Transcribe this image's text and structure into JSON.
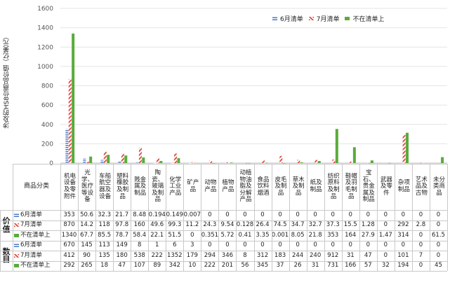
{
  "chart_data": {
    "type": "bar",
    "ylabel": "涉及的HS8位商品价值（亿美元）",
    "ylim": [
      0,
      1600
    ],
    "yticks": [
      0,
      200,
      400,
      600,
      800,
      1000,
      1200,
      1400,
      1600
    ],
    "legend_position": "top-right",
    "categories": [
      "机电设备及零附件",
      "光学、医疗等设备",
      "车船航空器及设备",
      "塑料橡胶及制品",
      "贱金属及制品",
      "陶瓷、玻璃及制品",
      "化学工业产品",
      "矿产品",
      "动物产品",
      "植物产品",
      "动植物油脂及分解产品",
      "食品饮料烟酒",
      "皮毛及制品",
      "草木及制品",
      "纸及制品",
      "纺织原料及制品",
      "鞋帽及羽毛制品",
      "宝石、贵金属及制品",
      "武器及零件",
      "杂项制品",
      "艺术品及古物",
      "未分类商品"
    ],
    "series": [
      {
        "name": "6月清单",
        "color": "#4a78c4",
        "values": [
          353,
          50.6,
          32.3,
          21.7,
          8.48,
          0.194,
          0.149,
          0.007,
          0,
          0,
          0,
          0,
          0,
          0,
          0,
          0,
          0,
          0,
          0,
          0,
          0,
          0
        ],
        "display": [
          "353",
          "50.6",
          "32.3",
          "21.7",
          "8.48",
          "0.194",
          "0.149",
          "0.007",
          "0",
          "0",
          "0",
          "0",
          "0",
          "0",
          "0",
          "0",
          "0",
          "0",
          "0",
          "0",
          "0",
          "0"
        ],
        "counts": [
          "670",
          "145",
          "113",
          "149",
          "8",
          "1",
          "6",
          "3",
          "0",
          "0",
          "0",
          "0",
          "0",
          "0",
          "0",
          "0",
          "0",
          "0",
          "0",
          "0",
          "0",
          "0"
        ]
      },
      {
        "name": "7月清单",
        "color": "#e0453a",
        "values": [
          870,
          14.2,
          118,
          97.8,
          160,
          49.6,
          99.3,
          11.2,
          24.3,
          9.54,
          0.128,
          26.4,
          74.5,
          34.7,
          32.7,
          37.3,
          15.5,
          1.28,
          0,
          292,
          2.8,
          0
        ],
        "display": [
          "870",
          "14.2",
          "118",
          "97.8",
          "160",
          "49.6",
          "99.3",
          "11.2",
          "24.3",
          "9.54",
          "0.128",
          "26.4",
          "74.5",
          "34.7",
          "32.7",
          "37.3",
          "15.5",
          "1.28",
          "0",
          "292",
          "2.8",
          "0"
        ],
        "counts": [
          "412",
          "90",
          "135",
          "180",
          "538",
          "222",
          "1352",
          "179",
          "294",
          "346",
          "8",
          "312",
          "183",
          "244",
          "240",
          "912",
          "31",
          "47",
          "0",
          "101",
          "7",
          "0"
        ]
      },
      {
        "name": "不在清单上",
        "color": "#5aab3c",
        "values": [
          1340,
          67.7,
          85.5,
          78.7,
          58.4,
          22.1,
          51.5,
          0,
          0.351,
          5.72,
          0.41,
          3.35,
          0.001,
          8.05,
          21.8,
          353,
          164,
          27.9,
          1.47,
          314,
          0,
          61.5
        ],
        "display": [
          "1340",
          "67.7",
          "85.5",
          "78.7",
          "58.4",
          "22.1",
          "51.5",
          "0",
          "0.351",
          "5.72",
          "0.41",
          "3.35",
          "0.001",
          "8.05",
          "21.8",
          "353",
          "164",
          "27.9",
          "1.47",
          "314",
          "0",
          "61.5"
        ],
        "counts": [
          "292",
          "265",
          "18",
          "47",
          "107",
          "89",
          "342",
          "10",
          "222",
          "201",
          "56",
          "345",
          "37",
          "26",
          "31",
          "731",
          "166",
          "57",
          "32",
          "194",
          "0",
          "45"
        ]
      }
    ]
  },
  "table": {
    "header_label": "商品分类",
    "group_value": "价值",
    "group_count": "数目"
  }
}
